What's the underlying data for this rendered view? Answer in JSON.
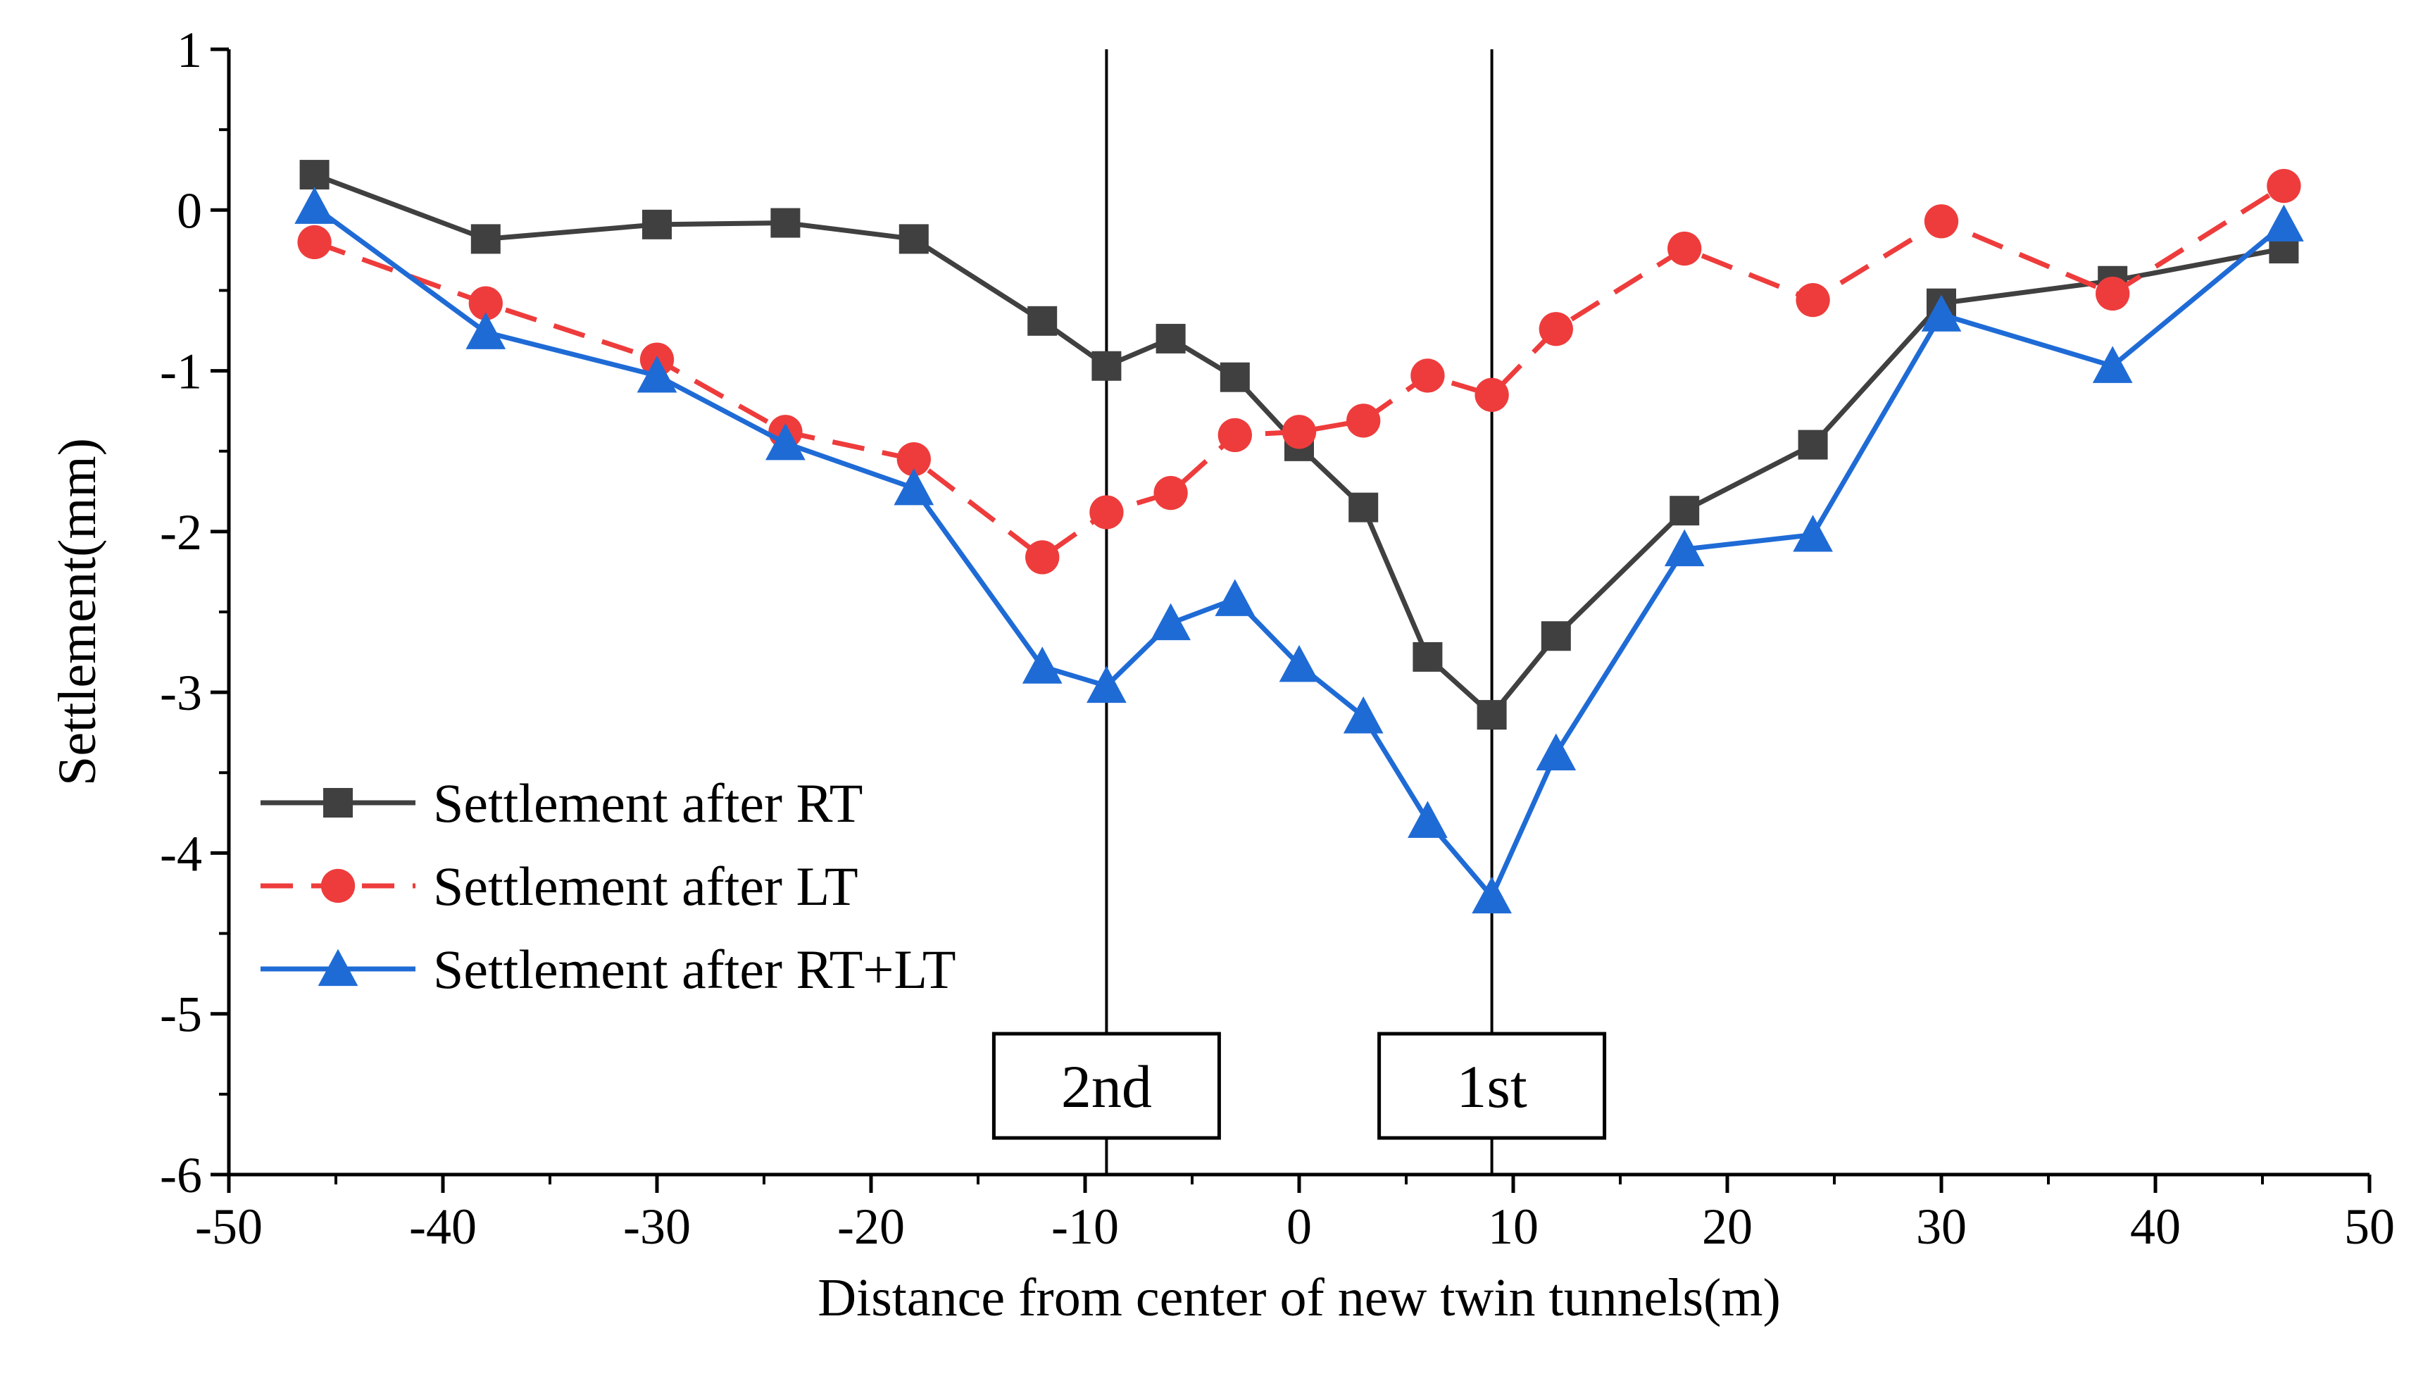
{
  "chart_data": {
    "type": "line",
    "title": "",
    "xlabel": "Distance from center of new twin tunnels(m)",
    "ylabel": "Settlement(mm)",
    "xlim": [
      -50,
      50
    ],
    "ylim": [
      -6,
      1
    ],
    "xticks": [
      -50,
      -40,
      -30,
      -20,
      -10,
      0,
      10,
      20,
      30,
      40,
      50
    ],
    "yticks": [
      1,
      0,
      -1,
      -2,
      -3,
      -4,
      -5,
      -6
    ],
    "x": [
      -46,
      -38,
      -30,
      -24,
      -18,
      -12,
      -9,
      -6,
      -3,
      0,
      3,
      6,
      9,
      12,
      18,
      24,
      30,
      38,
      46
    ],
    "series": [
      {
        "name": "Settlement after RT",
        "color": "#404040",
        "marker": "square",
        "dash": "solid",
        "values": [
          0.22,
          -0.18,
          -0.09,
          -0.08,
          -0.18,
          -0.69,
          -0.97,
          -0.8,
          -1.04,
          -1.47,
          -1.85,
          -2.78,
          -3.14,
          -2.65,
          -1.87,
          -1.46,
          -0.58,
          -0.44,
          -0.24
        ]
      },
      {
        "name": "Settlement after LT",
        "color": "#ee3c3c",
        "marker": "circle",
        "dash": "dashed",
        "values": [
          -0.2,
          -0.58,
          -0.93,
          -1.38,
          -1.55,
          -2.16,
          -1.88,
          -1.76,
          -1.4,
          -1.38,
          -1.31,
          -1.03,
          -1.15,
          -0.74,
          -0.24,
          -0.56,
          -0.07,
          -0.52,
          0.15
        ]
      },
      {
        "name": "Settlement after RT+LT",
        "color": "#1f6bd6",
        "marker": "triangle",
        "dash": "solid",
        "values": [
          0.02,
          -0.76,
          -1.03,
          -1.45,
          -1.73,
          -2.84,
          -2.96,
          -2.57,
          -2.42,
          -2.83,
          -3.15,
          -3.8,
          -4.27,
          -3.38,
          -2.11,
          -2.02,
          -0.65,
          -0.97,
          -0.09
        ]
      }
    ],
    "vertical_lines": [
      {
        "x": -9,
        "label": "2nd"
      },
      {
        "x": 9,
        "label": "1st"
      }
    ],
    "legend_position": "lower-left",
    "grid": false
  }
}
